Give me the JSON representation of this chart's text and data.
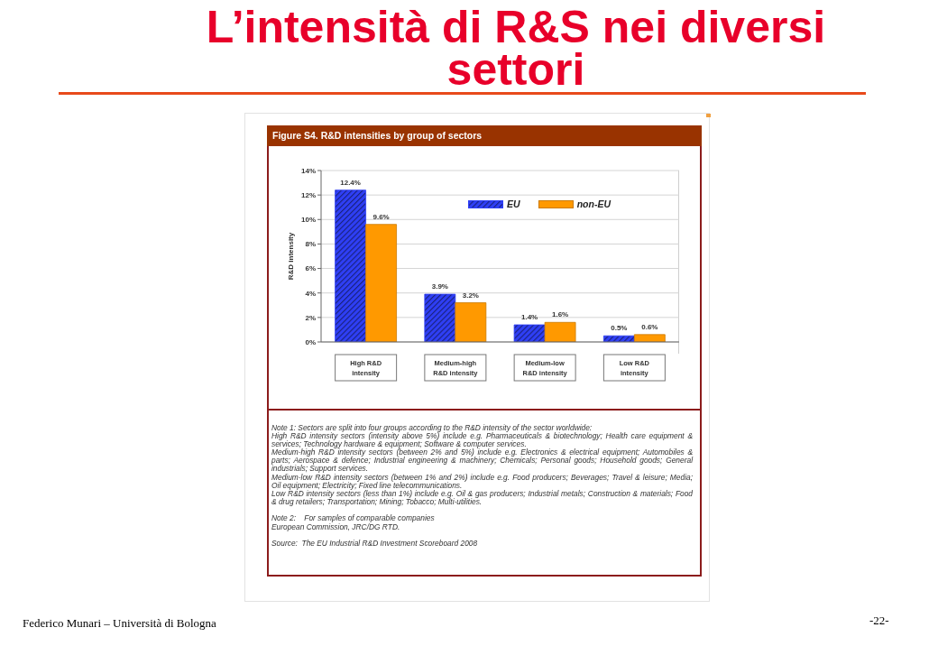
{
  "chart_data": {
    "type": "bar",
    "title": "L’intensità di R&S nei diversi settori",
    "subtitle": "Figure S4. R&D intensities by group of sectors",
    "ylabel": "R&D intensity",
    "categories": [
      "High R&D intensity",
      "Medium-high R&D intensity",
      "Medium-low R&D intensity",
      "Low R&D intensity"
    ],
    "series": [
      {
        "name": "EU",
        "color": "#2f3ff5",
        "values": [
          12.4,
          3.9,
          1.4,
          0.5
        ],
        "value_labels": [
          "12.4%",
          "3.9%",
          "1.4%",
          "0.5%"
        ]
      },
      {
        "name": "non-EU",
        "color": "#ff9900",
        "values": [
          9.6,
          3.2,
          1.6,
          0.6
        ],
        "value_labels": [
          "9.6%",
          "3.2%",
          "1.6%",
          "0.6%"
        ]
      }
    ],
    "ylim": [
      0,
      14
    ],
    "yticks": [
      {
        "value": 0,
        "label": "0%"
      },
      {
        "value": 2,
        "label": "2%"
      },
      {
        "value": 4,
        "label": "4%"
      },
      {
        "value": 6,
        "label": "6%"
      },
      {
        "value": 8,
        "label": "8%"
      },
      {
        "value": 10,
        "label": "10%"
      },
      {
        "value": 12,
        "label": "12%"
      },
      {
        "value": 14,
        "label": "14%"
      }
    ],
    "grid": "y",
    "legend": "top right",
    "annotations": [
      "Note 1: Sectors are split into four groups according to the R&D intensity of the sector worldwide:",
      "High R&D intensity sectors (intensity above 5%) include e.g. Pharmaceuticals & biotechnology; Health care equipment & services; Technology hardware & equipment; Software & computer services.",
      "Medium-high R&D intensity sectors (between 2% and 5%) include e.g. Electronics & electrical equipment; Automobiles & parts; Aerospace & defence; Industrial engineering & machinery; Chemicals; Personal goods; Household goods; General industrials; Support services.",
      "Medium-low R&D intensity sectors (between 1% and 2%) include e.g. Food producers; Beverages; Travel & leisure; Media; Oil equipment; Electricity; Fixed line telecommunications.",
      "Low R&D intensity sectors (less than 1%) include e.g. Oil & gas producers; Industrial metals; Construction & materials; Food & drug retailers; Transportation; Mining; Tobacco; Multi-utilities.",
      "Note 2:    For samples of comparable companies",
      "European Commission, JRC/DG RTD.",
      "Source:  The EU Industrial R&D Investment Scoreboard 2008",
      "Federico Munari – Università di Bologna",
      "-22-"
    ]
  }
}
